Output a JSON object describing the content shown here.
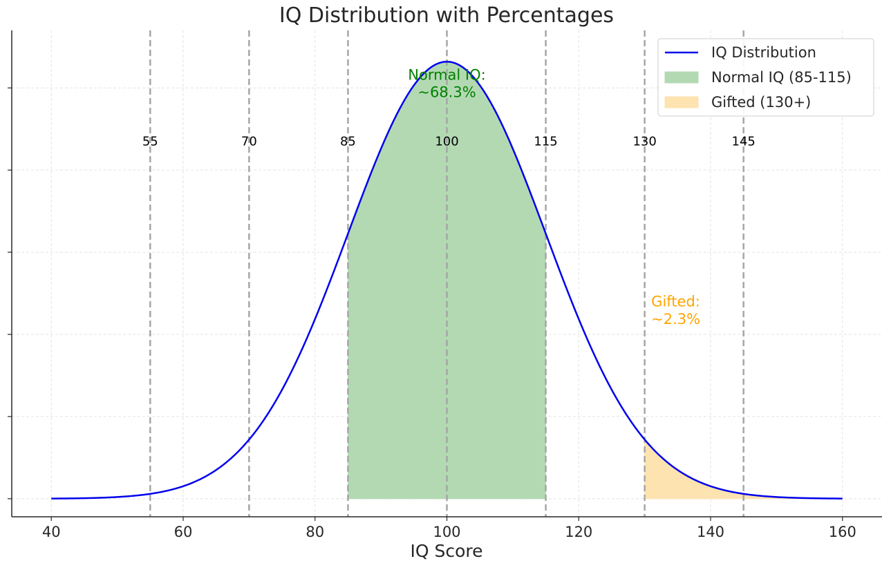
{
  "chart_data": {
    "type": "area",
    "title": "IQ Distribution with Percentages",
    "xlabel": "IQ Score",
    "ylabel": "",
    "xlim": [
      34,
      166
    ],
    "ylim": [
      -0.0011,
      0.0285
    ],
    "x_ticks": [
      40,
      60,
      80,
      100,
      120,
      140,
      160
    ],
    "y_tick_values": [
      0.0,
      0.005,
      0.01,
      0.015,
      0.02,
      0.025
    ],
    "y_tick_labels_visible": false,
    "grid": true,
    "legend_position": "top-right",
    "distribution": {
      "kind": "normal",
      "mean": 100,
      "sd": 15,
      "x_range": [
        40,
        160
      ]
    },
    "series": [
      {
        "name": "IQ Distribution",
        "type": "line",
        "color": "#0000ee"
      }
    ],
    "shaded_regions": [
      {
        "name": "Normal IQ (85-115)",
        "x_range": [
          85,
          115
        ],
        "color": "#b3d9b3"
      },
      {
        "name": "Gifted (130+)",
        "x_range": [
          130,
          160
        ],
        "color": "#fde3b0"
      }
    ],
    "vertical_lines": [
      {
        "x": 55,
        "label": "55"
      },
      {
        "x": 70,
        "label": "70"
      },
      {
        "x": 85,
        "label": "85"
      },
      {
        "x": 100,
        "label": "100"
      },
      {
        "x": 115,
        "label": "115"
      },
      {
        "x": 130,
        "label": "130"
      },
      {
        "x": 145,
        "label": "145"
      }
    ],
    "marker_label_y": 0.0215,
    "annotations": [
      {
        "lines": [
          "Normal IQ:",
          "~68.3%"
        ],
        "x": 100,
        "y": 0.0255,
        "align": "center",
        "color": "#008000"
      },
      {
        "lines": [
          "Gifted:",
          "~2.3%"
        ],
        "x": 131,
        "y": 0.0117,
        "align": "left",
        "color": "#ffa500"
      }
    ]
  }
}
